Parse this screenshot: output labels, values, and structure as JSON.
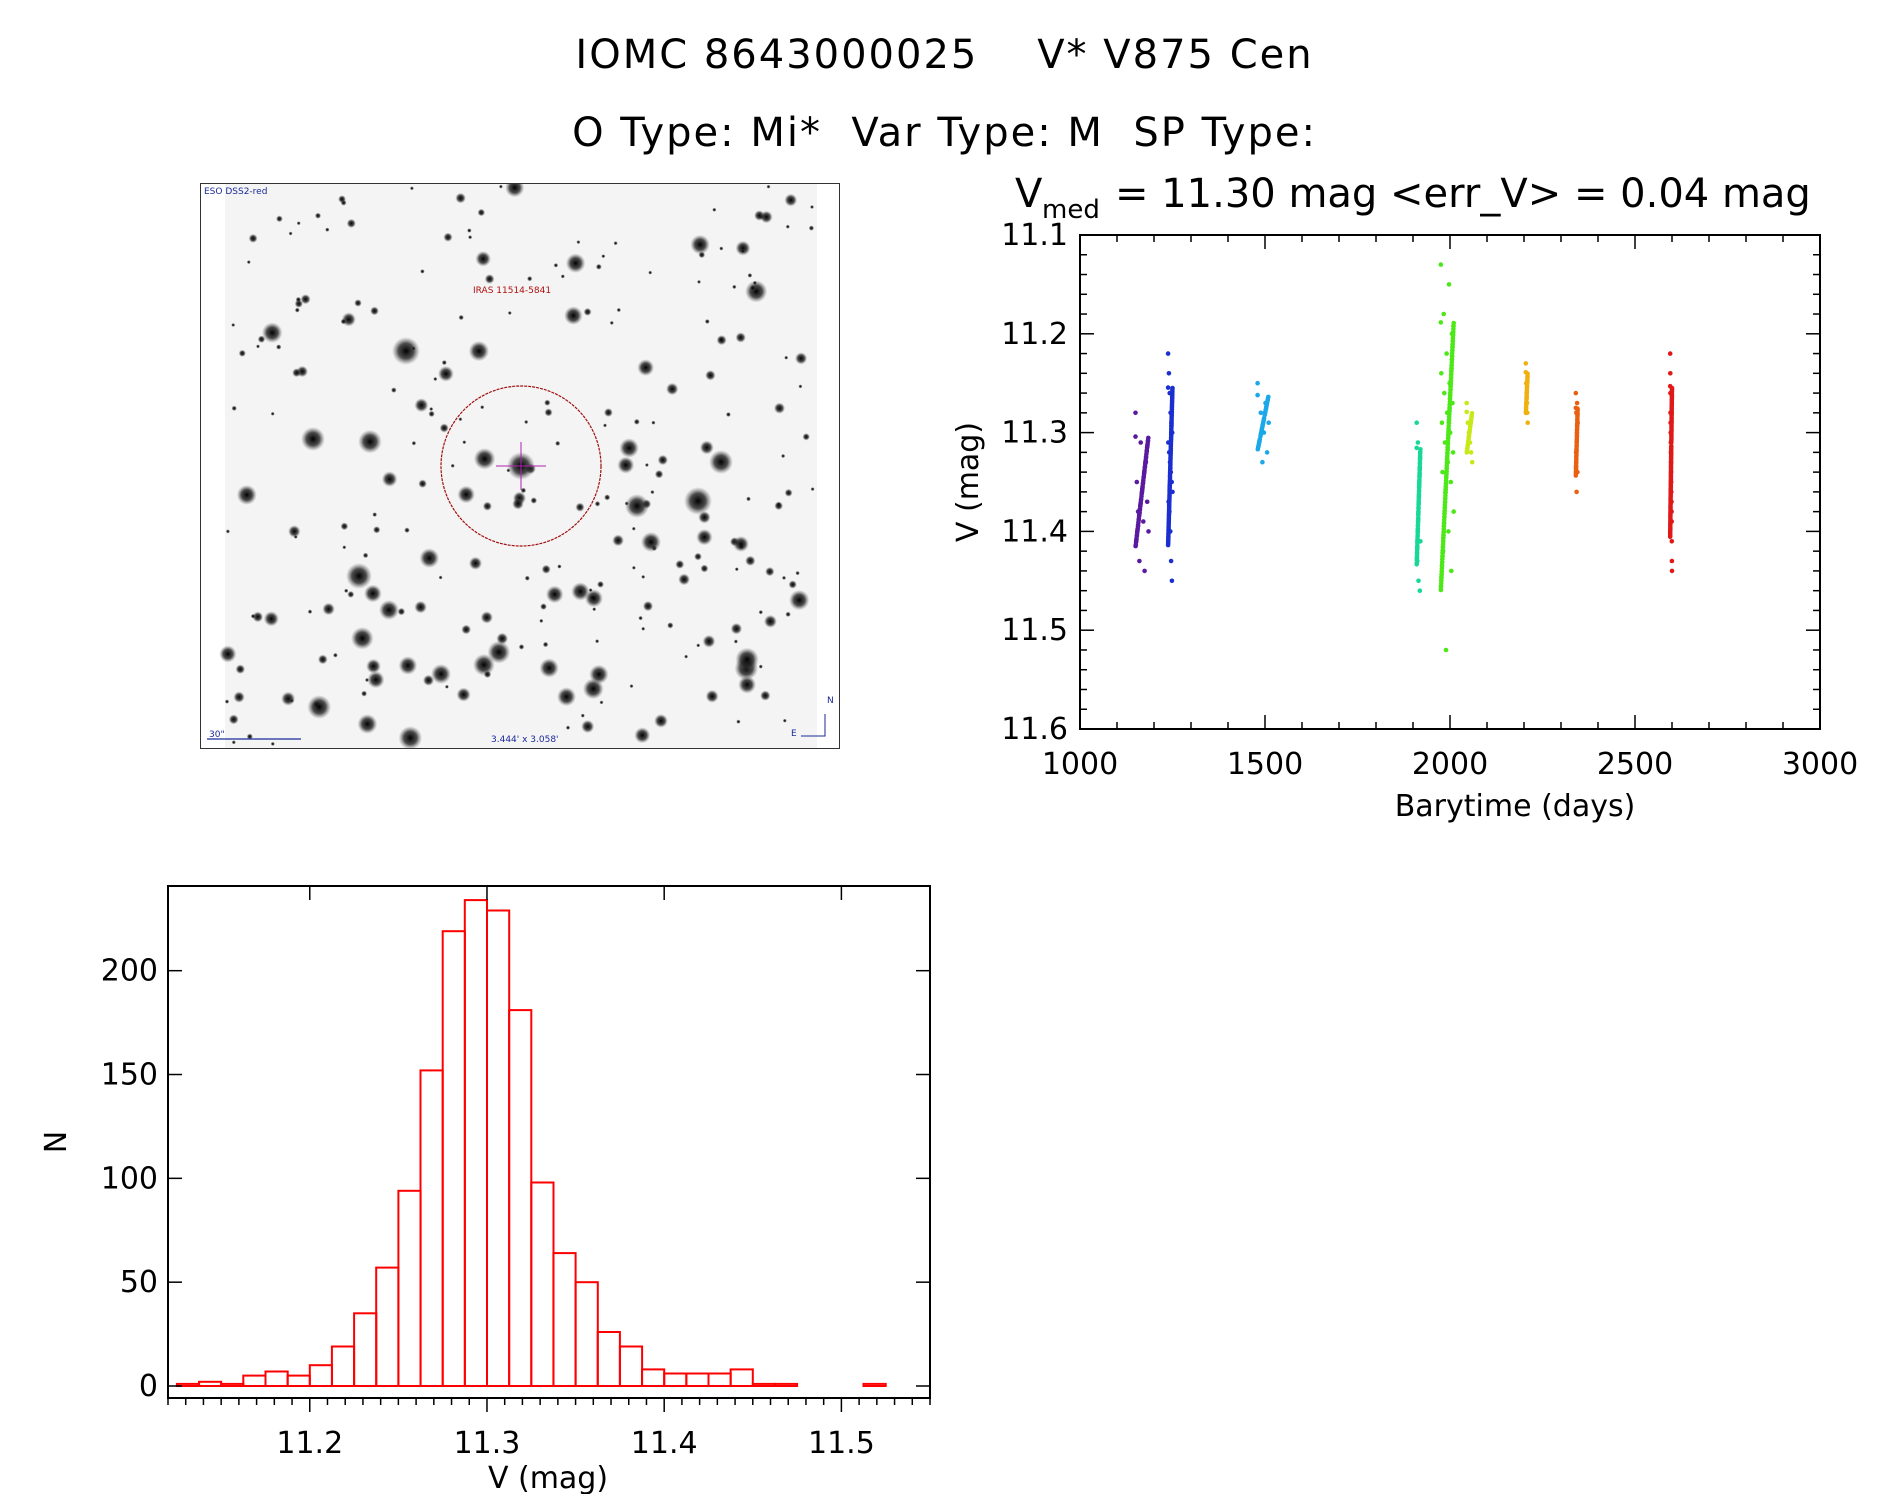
{
  "header": {
    "title_line1": "IOMC 8643000025    V* V875 Cen",
    "title_line2": "O Type: Mi*  Var Type: M  SP Type:"
  },
  "finder_chart": {
    "survey_label": "ESO DSS2-red",
    "target_label": "IRAS 11514-5841",
    "scale_label": "30\"",
    "fov_label": "3.444' x 3.058'",
    "north_label": "N",
    "east_label": "E"
  },
  "chart_data": [
    {
      "type": "scatter",
      "title_prefix": "V",
      "title_sub": "med",
      "title_rest": "= 11.30 mag <err_V> = 0.04 mag",
      "xlabel": "Barytime (days)",
      "ylabel": "V (mag)",
      "xlim": [
        1000,
        3000
      ],
      "ylim": [
        11.6,
        11.1
      ],
      "y_inverted": true,
      "x_ticks": [
        1000,
        1500,
        2000,
        2500,
        3000
      ],
      "y_ticks": [
        11.1,
        11.2,
        11.3,
        11.4,
        11.5,
        11.6
      ],
      "y_tick_labels": [
        "11.1",
        "11.2",
        "11.3",
        "11.4",
        "11.5",
        "11.6"
      ],
      "series": [
        {
          "color": "#5a1aa0",
          "x_range": [
            1150,
            1185
          ],
          "y_points": [
            11.28,
            11.31,
            11.33,
            11.35,
            11.36,
            11.37,
            11.38,
            11.39,
            11.4,
            11.43,
            11.44
          ]
        },
        {
          "color": "#1b2fd0",
          "x_range": [
            1238,
            1250
          ],
          "y_points": [
            11.22,
            11.24,
            11.26,
            11.28,
            11.29,
            11.3,
            11.31,
            11.32,
            11.33,
            11.34,
            11.35,
            11.36,
            11.37,
            11.38,
            11.4,
            11.43,
            11.45
          ]
        },
        {
          "color": "#1aa8e8",
          "x_range": [
            1480,
            1510
          ],
          "y_points": [
            11.25,
            11.27,
            11.28,
            11.29,
            11.3,
            11.31,
            11.32,
            11.33
          ]
        },
        {
          "color": "#18d898",
          "x_range": [
            1910,
            1920
          ],
          "y_points": [
            11.29,
            11.31,
            11.35,
            11.41,
            11.43,
            11.45,
            11.46
          ]
        },
        {
          "color": "#4ce818",
          "x_range": [
            1975,
            2010
          ],
          "y_points": [
            11.13,
            11.15,
            11.18,
            11.2,
            11.22,
            11.24,
            11.25,
            11.26,
            11.27,
            11.28,
            11.29,
            11.3,
            11.31,
            11.32,
            11.33,
            11.34,
            11.35,
            11.36,
            11.38,
            11.4,
            11.42,
            11.44,
            11.52
          ]
        },
        {
          "color": "#c8e818",
          "x_range": [
            2045,
            2060
          ],
          "y_points": [
            11.27,
            11.29,
            11.3,
            11.31,
            11.32,
            11.33
          ]
        },
        {
          "color": "#f0b010",
          "x_range": [
            2205,
            2210
          ],
          "y_points": [
            11.23,
            11.25,
            11.26,
            11.27,
            11.28,
            11.29
          ]
        },
        {
          "color": "#e86010",
          "x_range": [
            2340,
            2345
          ],
          "y_points": [
            11.26,
            11.27,
            11.28,
            11.29,
            11.3,
            11.32,
            11.34,
            11.36
          ]
        },
        {
          "color": "#e01818",
          "x_range": [
            2595,
            2600
          ],
          "y_points": [
            11.22,
            11.24,
            11.26,
            11.28,
            11.29,
            11.3,
            11.31,
            11.32,
            11.33,
            11.34,
            11.35,
            11.36,
            11.37,
            11.38,
            11.39,
            11.41,
            11.43,
            11.44
          ]
        }
      ]
    },
    {
      "type": "bar",
      "style": "step-histogram",
      "color": "#ff0000",
      "xlabel": "V (mag)",
      "ylabel": "N",
      "xlim": [
        11.12,
        11.55
      ],
      "ylim": [
        0,
        235
      ],
      "x_ticks": [
        11.2,
        11.3,
        11.4,
        11.5
      ],
      "x_tick_labels": [
        "11.2",
        "11.3",
        "11.4",
        "11.5"
      ],
      "y_ticks": [
        0,
        50,
        100,
        150,
        200
      ],
      "bin_width": 0.0125,
      "bin_start": 11.125,
      "values": [
        1,
        2,
        1,
        5,
        7,
        5,
        10,
        19,
        35,
        57,
        94,
        152,
        219,
        234,
        229,
        181,
        98,
        64,
        50,
        26,
        19,
        8,
        6,
        6,
        6,
        8,
        1,
        1,
        0,
        0,
        0,
        1,
        0
      ]
    }
  ]
}
